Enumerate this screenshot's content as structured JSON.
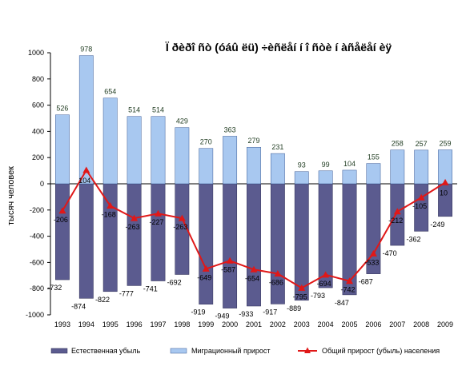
{
  "chart_data": {
    "type": "bar",
    "title": "Ï ðèðî ñò (óáû ëü) ÷èñëåí í î ñòè í àñåëåí èÿ",
    "ylabel": "тысяч человек",
    "xlabel": "",
    "ylim": [
      -1000,
      1000
    ],
    "yticks": [
      -1000,
      -800,
      -600,
      -400,
      -200,
      0,
      200,
      400,
      600,
      800,
      1000
    ],
    "grid": false,
    "legend_position": "bottom",
    "categories": [
      "1993",
      "1994",
      "1995",
      "1996",
      "1997",
      "1998",
      "1999",
      "2000",
      "2001",
      "2002",
      "2003",
      "2004",
      "2005",
      "2006",
      "2007",
      "2008",
      "2009"
    ],
    "series": [
      {
        "name": "Естественная убыль",
        "type": "bar",
        "color": "#5b5b8f",
        "values": [
          -732,
          -874,
          -822,
          -777,
          -741,
          -692,
          -919,
          -949,
          -933,
          -917,
          -889,
          -793,
          -847,
          -687,
          -470,
          -362,
          -249
        ],
        "labels": [
          "-732",
          "-874",
          "-822",
          "-777",
          "-741",
          "-692",
          "-919",
          "-949",
          "-933",
          "-917",
          "-889",
          "-793",
          "-847",
          "-687",
          "-470",
          "-362",
          "-249"
        ]
      },
      {
        "name": "Миграционный прирост",
        "type": "bar",
        "color": "#a8c8f0",
        "values": [
          526,
          978,
          654,
          514,
          514,
          429,
          270,
          363,
          279,
          231,
          93,
          99,
          104,
          155,
          258,
          257,
          259
        ],
        "labels": [
          "526",
          "978",
          "654",
          "514",
          "514",
          "429",
          "270",
          "363",
          "279",
          "231",
          "93",
          "99",
          "104",
          "155",
          "258",
          "257",
          "259"
        ]
      },
      {
        "name": "Общий прирост (убыль) населения",
        "type": "line",
        "color": "#e01818",
        "values": [
          -206,
          104,
          -168,
          -263,
          -227,
          -263,
          -649,
          -587,
          -654,
          -686,
          -795,
          -694,
          -742,
          -533,
          -212,
          -105,
          10
        ],
        "labels": [
          "-206",
          "104",
          "-168",
          "-263",
          "-227",
          "-263",
          "-649",
          "-587",
          "-654",
          "-686",
          "-795",
          "-694",
          "-742",
          "-533",
          "-212",
          "-105",
          "10"
        ]
      }
    ]
  }
}
